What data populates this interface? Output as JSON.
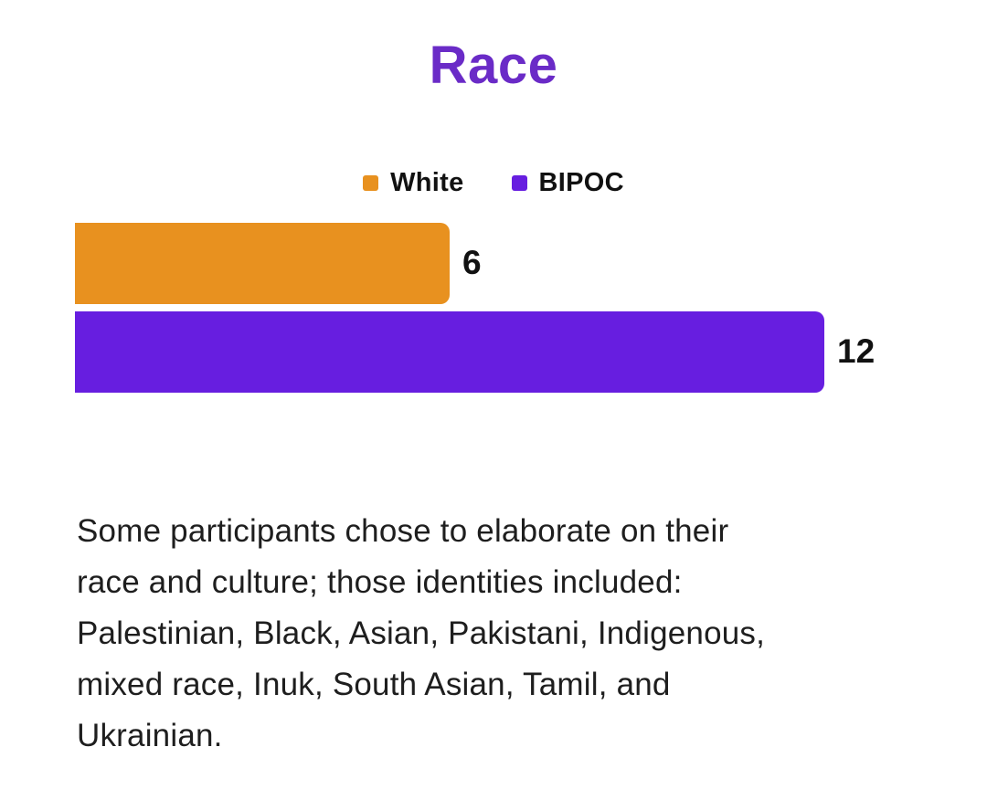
{
  "title": "Race",
  "title_color": "#6a2bc7",
  "chart_data": {
    "type": "bar",
    "orientation": "horizontal",
    "title": "Race",
    "categories": [
      "White",
      "BIPOC"
    ],
    "values": [
      6,
      12
    ],
    "colors": [
      "#e8911f",
      "#671ee0"
    ],
    "value_labels": [
      6,
      12
    ],
    "legend": [
      "White",
      "BIPOC"
    ],
    "legend_position": "top",
    "xlim": [
      0,
      12
    ],
    "grid": false,
    "axes_shown": false
  },
  "description": "Some participants chose to elaborate on their\nrace and culture; those identities included:\nPalestinian, Black, Asian, Pakistani, Indigenous,\nmixed race, Inuk, South Asian, Tamil, and\nUkrainian."
}
